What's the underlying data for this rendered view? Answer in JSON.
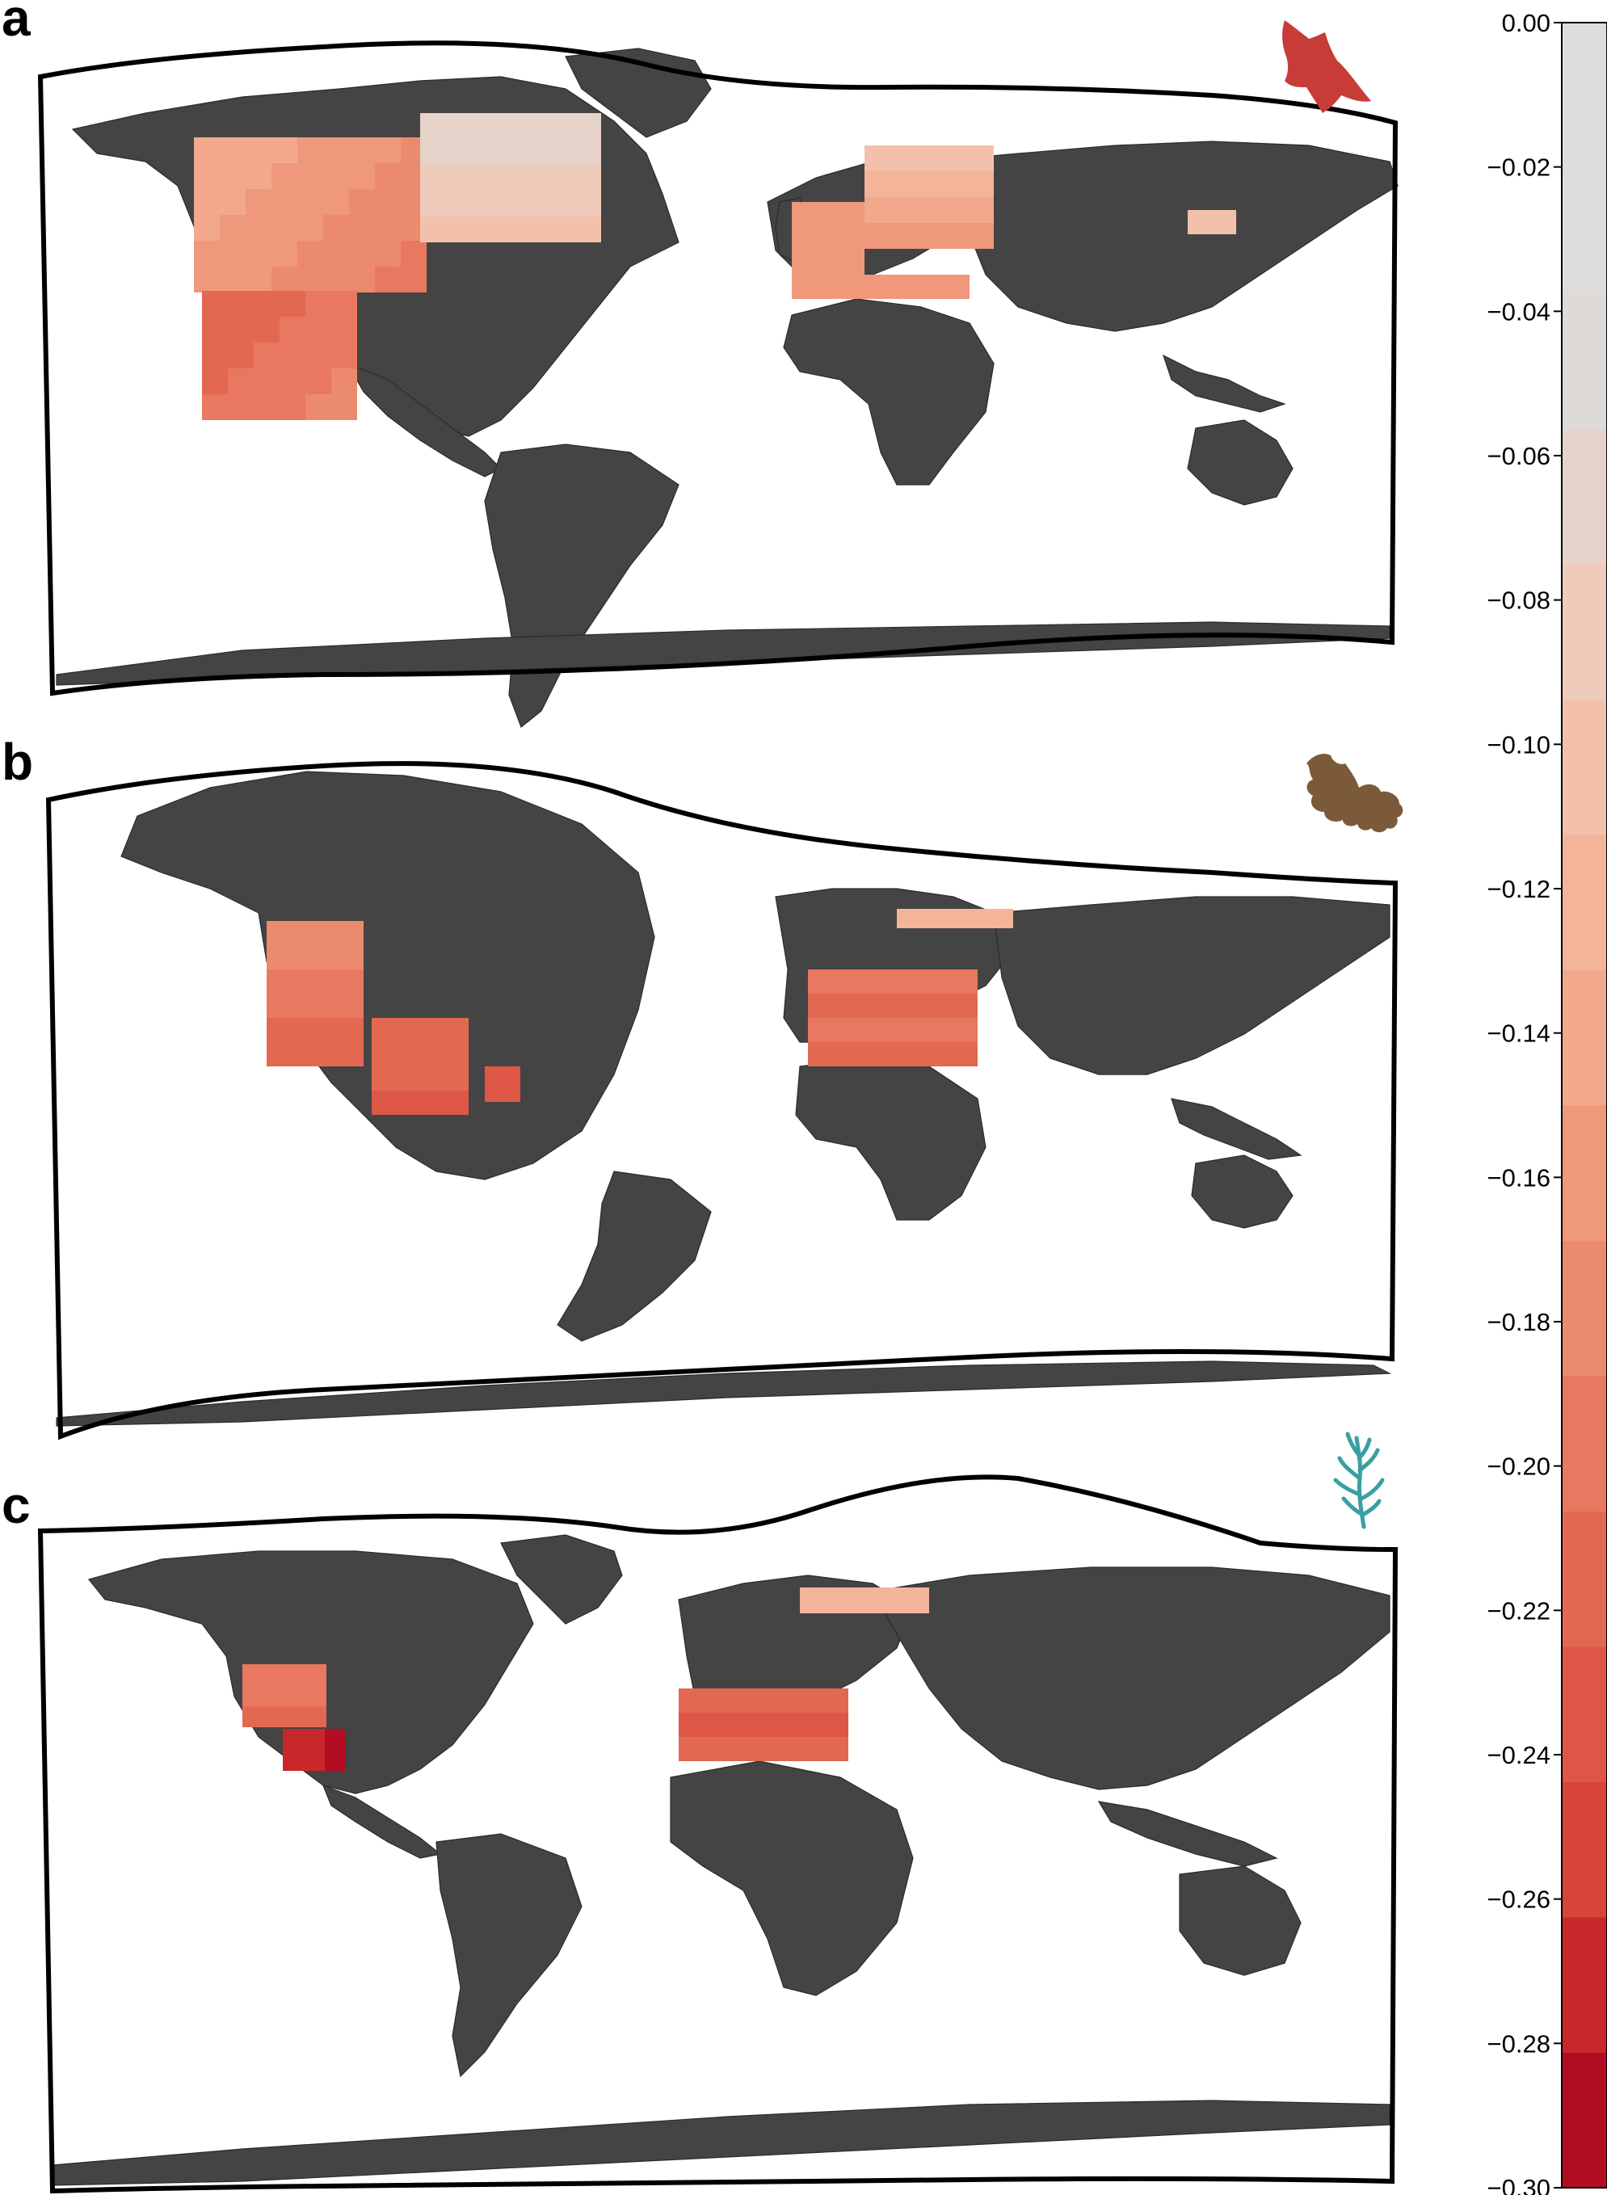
{
  "panels": [
    {
      "letter": "a",
      "icon": "bat-icon",
      "icon_color": "#c83c38"
    },
    {
      "letter": "b",
      "icon": "oak-leaf-icon",
      "icon_color": "#7a5a38"
    },
    {
      "letter": "c",
      "icon": "seaweed-icon",
      "icon_color": "#3a9fa2"
    }
  ],
  "colorbar": {
    "min": -0.3,
    "max": 0.0,
    "ticks": [
      "0.00",
      "−0.02",
      "−0.04",
      "−0.06",
      "−0.08",
      "−0.10",
      "−0.12",
      "−0.14",
      "−0.16",
      "−0.18",
      "−0.20",
      "−0.22",
      "−0.24",
      "−0.26",
      "−0.28",
      "−0.30"
    ],
    "colors": [
      "#b30d23",
      "#c8282a",
      "#d8433a",
      "#de5746",
      "#e36852",
      "#e8785f",
      "#ec8a6e",
      "#ef987c",
      "#f2a88b",
      "#f4b49a",
      "#f3c1ab",
      "#efcbbc",
      "#e6d3ca",
      "#dddad8",
      "#dddddd",
      "#dddddd"
    ]
  },
  "colors": {
    "land": "#444444",
    "ocean": "#ffffff",
    "frame": "#000000"
  }
}
